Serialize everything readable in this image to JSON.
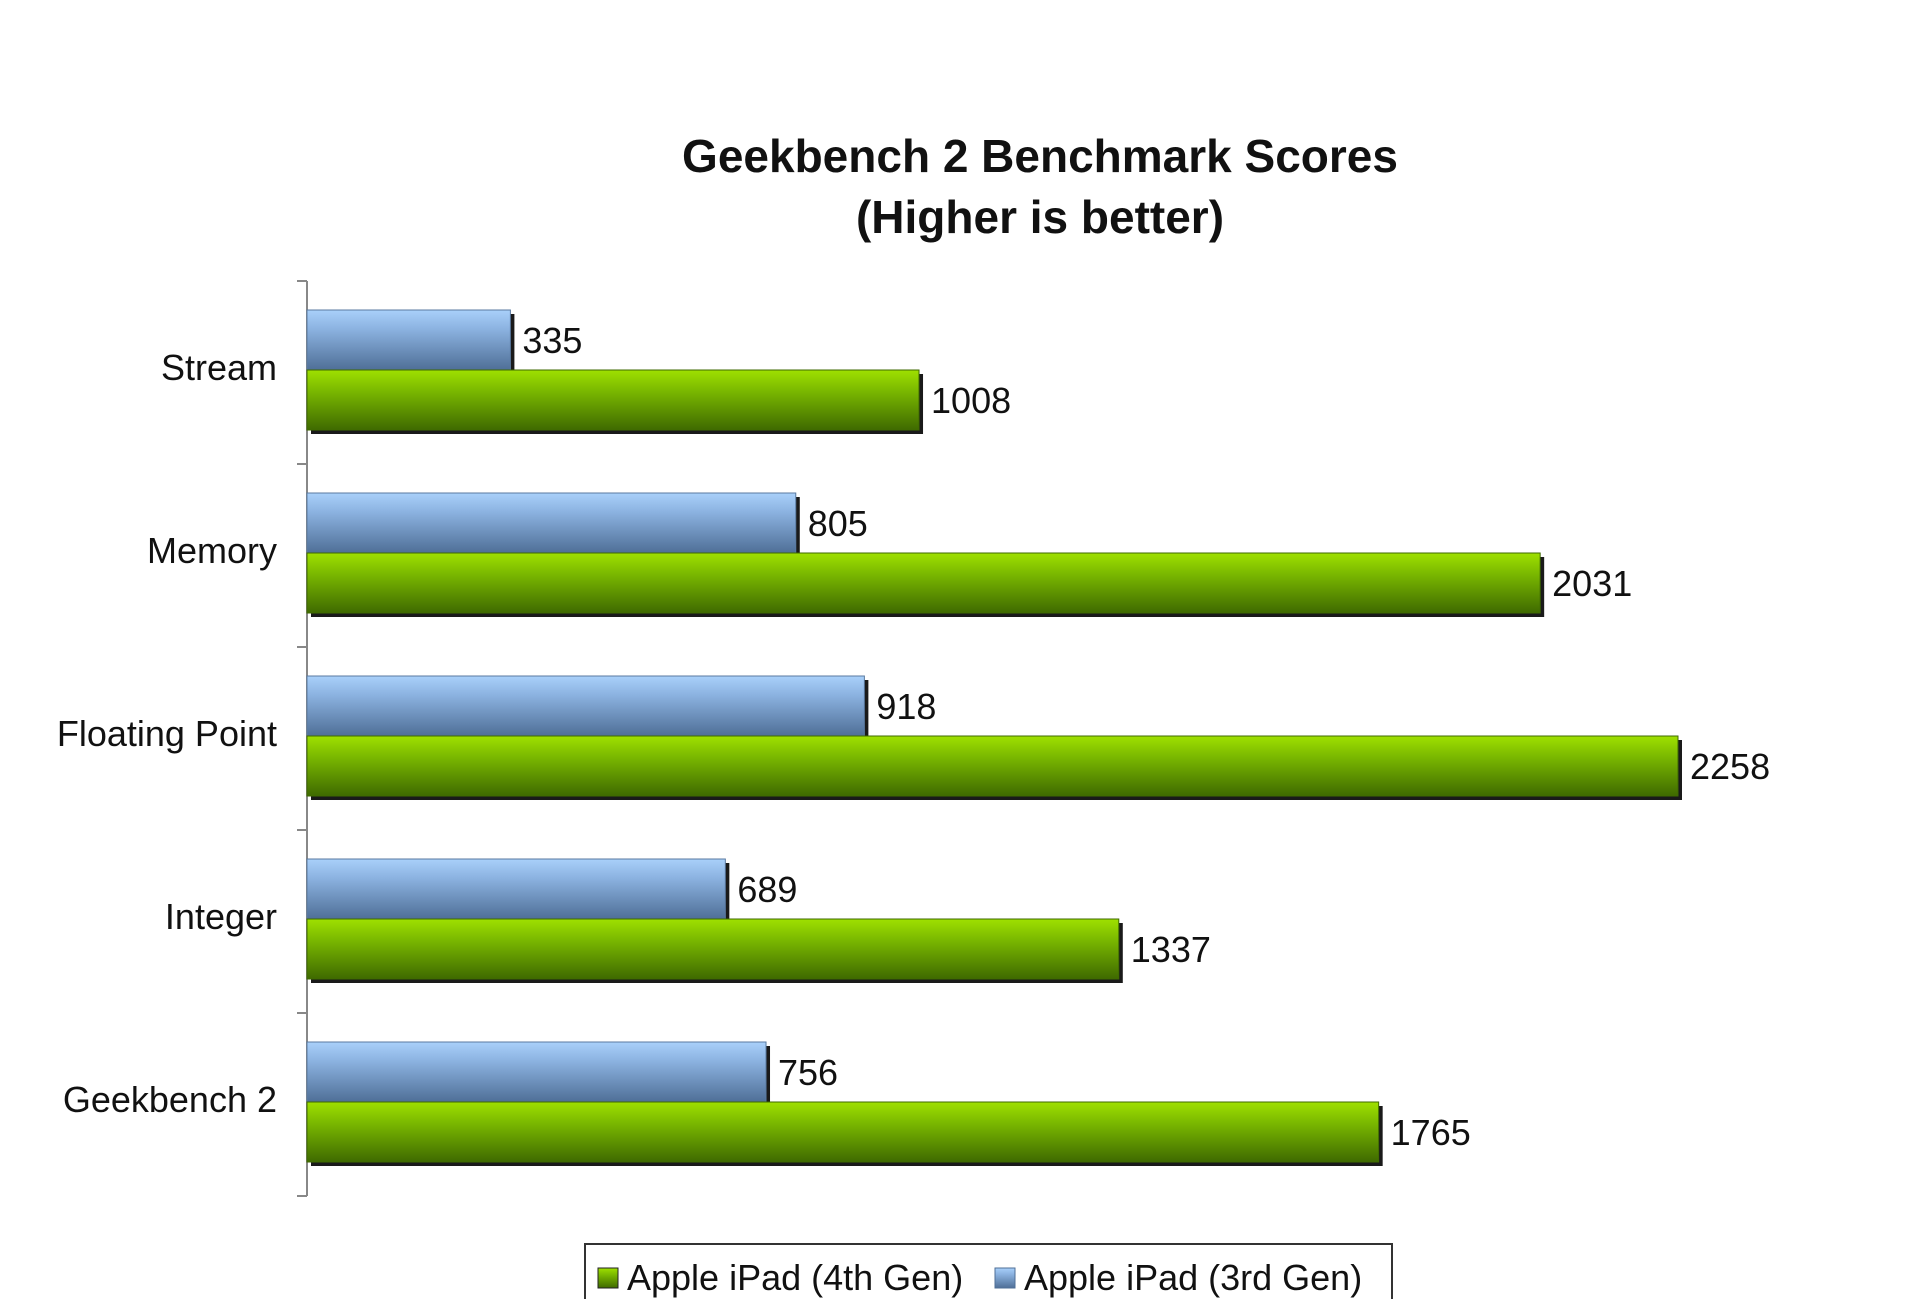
{
  "chart_data": {
    "type": "bar",
    "orientation": "horizontal",
    "title_lines": [
      "Geekbench 2 Benchmark Scores",
      "(Higher is better)"
    ],
    "categories": [
      "Stream",
      "Memory",
      "Floating Point",
      "Integer",
      "Geekbench 2"
    ],
    "series": [
      {
        "name": "Apple iPad (3rd Gen)",
        "values": [
          335,
          805,
          918,
          689,
          756
        ],
        "color": "#8db4e2"
      },
      {
        "name": "Apple iPad (4th Gen)",
        "values": [
          1008,
          2031,
          2258,
          1337,
          1765
        ],
        "color": "#7ab800"
      }
    ],
    "xlim": [
      0,
      2258
    ],
    "grid": false,
    "legend": {
      "placement": "bottom-center",
      "order": [
        "Apple iPad (4th Gen)",
        "Apple iPad (3rd Gen)"
      ]
    }
  }
}
